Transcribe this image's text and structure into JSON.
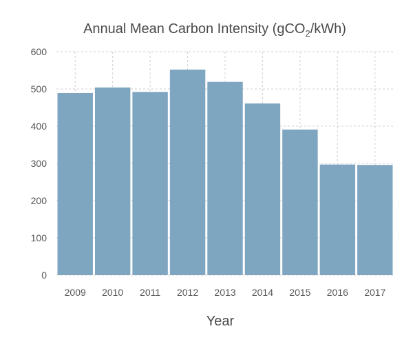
{
  "chart_data": {
    "type": "bar",
    "title_main": "Annual Mean Carbon Intensity (gCO",
    "title_sub": "2",
    "title_tail": "/kWh)",
    "xlabel": "Year",
    "ylabel": "",
    "categories": [
      "2009",
      "2010",
      "2011",
      "2012",
      "2013",
      "2014",
      "2015",
      "2016",
      "2017"
    ],
    "values": [
      489,
      504,
      492,
      552,
      519,
      461,
      391,
      297,
      296
    ],
    "ylim": [
      0,
      600
    ],
    "yticks": [
      0,
      100,
      200,
      300,
      400,
      500,
      600
    ],
    "grid": true,
    "bar_color": "#7fa6c1"
  }
}
